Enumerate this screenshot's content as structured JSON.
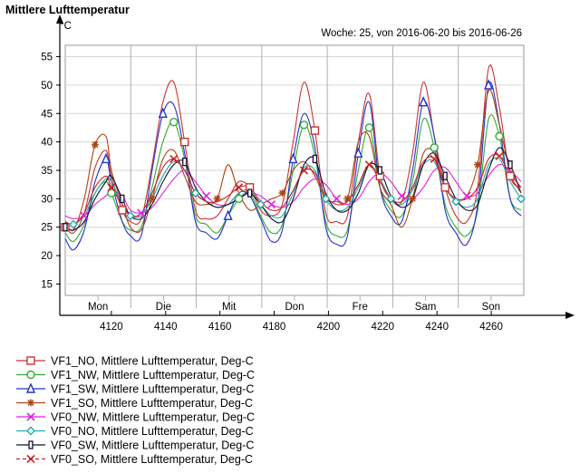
{
  "chart_data": {
    "type": "line",
    "title": "Mittlere Lufttemperatur",
    "ylabel": "°C",
    "subtitle": "Woche: 25, von 2016-06-20 bis 2016-06-26",
    "xlim": [
      4103,
      4272
    ],
    "ylim": [
      13,
      57
    ],
    "x_ticks": [
      4120,
      4140,
      4160,
      4180,
      4200,
      4220,
      4240,
      4260
    ],
    "y_ticks": [
      15,
      20,
      25,
      30,
      35,
      40,
      45,
      50,
      55
    ],
    "day_labels": [
      "Mon",
      "Die",
      "Mit",
      "Don",
      "Fre",
      "Sam",
      "Son"
    ],
    "grid": true,
    "legend_position": "bottom",
    "series": [
      {
        "name": "VF1_NO, Mittlere Lufttemperatur, Deg-C",
        "color": "#cc3333",
        "marker": "square",
        "x": [
          4103,
          4106,
          4110,
          4114,
          4118,
          4120,
          4124,
          4127,
          4131,
          4135,
          4139,
          4143,
          4147,
          4151,
          4155,
          4159,
          4163,
          4167,
          4171,
          4175,
          4179,
          4183,
          4187,
          4191,
          4195,
          4199,
          4203,
          4207,
          4211,
          4215,
          4219,
          4223,
          4227,
          4231,
          4235,
          4239,
          4243,
          4247,
          4251,
          4255,
          4259,
          4263,
          4267,
          4271
        ],
        "y": [
          25.0,
          24.0,
          27.5,
          35.5,
          38.5,
          34.0,
          28.0,
          26.0,
          26.5,
          36.0,
          47.0,
          50.5,
          40.0,
          28.0,
          26.5,
          27.0,
          30.0,
          33.0,
          32.0,
          28.0,
          27.0,
          29.0,
          40.0,
          50.5,
          42.0,
          27.5,
          26.0,
          27.0,
          40.0,
          48.5,
          34.0,
          30.0,
          29.5,
          38.0,
          50.5,
          41.0,
          32.0,
          27.0,
          26.0,
          32.0,
          53.0,
          46.0,
          34.0,
          32.0
        ]
      },
      {
        "name": "VF1_NW, Mittlere Lufttemperatur, Deg-C",
        "color": "#33aa33",
        "marker": "circle",
        "x": [
          4103,
          4106,
          4110,
          4114,
          4118,
          4120,
          4124,
          4127,
          4131,
          4135,
          4139,
          4143,
          4147,
          4151,
          4155,
          4159,
          4163,
          4167,
          4171,
          4175,
          4179,
          4183,
          4187,
          4191,
          4195,
          4199,
          4203,
          4207,
          4211,
          4215,
          4219,
          4223,
          4227,
          4231,
          4235,
          4239,
          4243,
          4247,
          4251,
          4255,
          4259,
          4263,
          4267,
          4271
        ],
        "y": [
          24.0,
          22.5,
          25.5,
          31.0,
          33.0,
          31.0,
          26.0,
          24.5,
          25.0,
          32.0,
          40.0,
          43.5,
          37.0,
          27.0,
          25.5,
          24.0,
          27.0,
          30.0,
          31.0,
          27.0,
          24.0,
          25.5,
          35.0,
          43.0,
          37.5,
          26.0,
          23.5,
          24.5,
          35.0,
          42.5,
          32.0,
          28.0,
          27.0,
          33.0,
          44.0,
          39.0,
          29.0,
          25.0,
          23.5,
          28.0,
          44.0,
          41.0,
          30.0,
          28.0
        ]
      },
      {
        "name": "VF1_SW, Mittlere Lufttemperatur, Deg-C",
        "color": "#2233cc",
        "marker": "triangle",
        "x": [
          4103,
          4106,
          4110,
          4114,
          4118,
          4120,
          4124,
          4127,
          4131,
          4135,
          4139,
          4143,
          4147,
          4151,
          4155,
          4159,
          4163,
          4167,
          4171,
          4175,
          4179,
          4183,
          4187,
          4191,
          4195,
          4199,
          4203,
          4207,
          4211,
          4215,
          4219,
          4223,
          4227,
          4231,
          4235,
          4239,
          4243,
          4247,
          4251,
          4255,
          4259,
          4263,
          4267,
          4271
        ],
        "y": [
          23.0,
          21.0,
          24.5,
          33.0,
          37.0,
          33.0,
          26.0,
          23.5,
          23.5,
          35.0,
          45.0,
          46.5,
          38.0,
          26.0,
          24.0,
          23.0,
          27.0,
          31.0,
          30.5,
          26.5,
          22.5,
          24.5,
          37.0,
          45.0,
          39.0,
          25.0,
          22.0,
          23.5,
          38.0,
          47.0,
          32.0,
          27.0,
          26.0,
          35.0,
          47.0,
          41.0,
          28.0,
          24.0,
          22.0,
          29.0,
          50.0,
          43.0,
          30.0,
          27.0
        ]
      },
      {
        "name": "VF1_SO, Mittlere Lufttemperatur, Deg-C",
        "color": "#aa4411",
        "marker": "star",
        "x": [
          4103,
          4106,
          4110,
          4114,
          4118,
          4120,
          4124,
          4127,
          4131,
          4135,
          4139,
          4143,
          4147,
          4151,
          4155,
          4159,
          4163,
          4167,
          4171,
          4175,
          4179,
          4183,
          4187,
          4191,
          4195,
          4199,
          4203,
          4207,
          4211,
          4215,
          4219,
          4223,
          4227,
          4231,
          4235,
          4239,
          4243,
          4247,
          4251,
          4255,
          4259,
          4263,
          4267,
          4271
        ],
        "y": [
          26.0,
          24.5,
          30.0,
          39.5,
          41.0,
          35.0,
          29.0,
          25.0,
          24.5,
          30.0,
          37.0,
          38.5,
          34.0,
          29.5,
          29.0,
          30.0,
          36.0,
          31.0,
          28.0,
          29.0,
          30.0,
          31.0,
          35.0,
          36.5,
          34.0,
          30.0,
          29.5,
          30.0,
          40.0,
          41.0,
          32.0,
          29.0,
          25.0,
          30.0,
          38.0,
          38.0,
          32.0,
          30.0,
          30.5,
          36.0,
          49.0,
          43.0,
          35.0,
          32.0
        ]
      },
      {
        "name": "VF0_NW, Mittlere Lufttemperatur, Deg-C",
        "color": "#dd22dd",
        "marker": "x",
        "x": [
          4103,
          4106,
          4110,
          4114,
          4118,
          4120,
          4124,
          4127,
          4131,
          4135,
          4139,
          4143,
          4147,
          4151,
          4155,
          4159,
          4163,
          4167,
          4171,
          4175,
          4179,
          4183,
          4187,
          4191,
          4195,
          4199,
          4203,
          4207,
          4211,
          4215,
          4219,
          4223,
          4227,
          4231,
          4235,
          4239,
          4243,
          4247,
          4251,
          4255,
          4259,
          4263,
          4267,
          4271
        ],
        "y": [
          27.0,
          26.5,
          27.0,
          29.0,
          30.5,
          31.5,
          30.5,
          28.0,
          27.5,
          28.5,
          31.0,
          33.5,
          35.0,
          33.0,
          30.5,
          29.0,
          29.0,
          30.0,
          31.0,
          30.5,
          29.0,
          28.5,
          29.5,
          32.0,
          33.5,
          32.5,
          30.0,
          29.0,
          30.0,
          33.0,
          34.5,
          33.0,
          30.5,
          30.0,
          32.0,
          35.0,
          35.5,
          33.0,
          30.5,
          31.0,
          34.0,
          36.0,
          35.0,
          33.0
        ]
      },
      {
        "name": "VF0_NO, Mittlere Lufttemperatur, Deg-C",
        "color": "#22aaaa",
        "marker": "diamond",
        "x": [
          4103,
          4106,
          4110,
          4114,
          4118,
          4120,
          4124,
          4127,
          4131,
          4135,
          4139,
          4143,
          4147,
          4151,
          4155,
          4159,
          4163,
          4167,
          4171,
          4175,
          4179,
          4183,
          4187,
          4191,
          4195,
          4199,
          4203,
          4207,
          4211,
          4215,
          4219,
          4223,
          4227,
          4231,
          4235,
          4239,
          4243,
          4247,
          4251,
          4255,
          4259,
          4263,
          4267,
          4271
        ],
        "y": [
          26.0,
          25.5,
          27.0,
          31.0,
          33.5,
          33.0,
          29.0,
          27.0,
          27.0,
          30.0,
          34.0,
          36.5,
          35.0,
          31.0,
          29.5,
          28.5,
          29.0,
          31.0,
          31.5,
          29.0,
          27.0,
          27.0,
          31.0,
          35.5,
          35.0,
          30.0,
          28.0,
          28.5,
          32.0,
          36.0,
          33.5,
          30.0,
          29.0,
          31.5,
          36.0,
          36.5,
          32.0,
          29.5,
          28.5,
          30.0,
          36.0,
          37.0,
          33.0,
          30.0
        ]
      },
      {
        "name": "VF0_SW, Mittlere Lufttemperatur, Deg-C",
        "color": "#111133",
        "marker": "rect",
        "x": [
          4103,
          4106,
          4110,
          4114,
          4118,
          4120,
          4124,
          4127,
          4131,
          4135,
          4139,
          4143,
          4147,
          4151,
          4155,
          4159,
          4163,
          4167,
          4171,
          4175,
          4179,
          4183,
          4187,
          4191,
          4195,
          4199,
          4203,
          4207,
          4211,
          4215,
          4219,
          4223,
          4227,
          4231,
          4235,
          4239,
          4243,
          4247,
          4251,
          4255,
          4259,
          4263,
          4267,
          4271
        ],
        "y": [
          25.0,
          24.5,
          26.0,
          30.0,
          33.0,
          34.0,
          30.0,
          27.0,
          26.5,
          29.0,
          33.0,
          36.0,
          36.5,
          32.0,
          29.5,
          28.5,
          29.0,
          30.0,
          31.0,
          29.0,
          26.5,
          26.0,
          30.0,
          36.0,
          37.0,
          31.0,
          28.0,
          28.0,
          31.0,
          36.0,
          35.0,
          30.5,
          28.5,
          30.0,
          36.0,
          38.0,
          34.0,
          30.0,
          28.0,
          29.0,
          35.0,
          39.0,
          36.0,
          31.0
        ]
      },
      {
        "name": "VF0_SO, Mittlere Lufttemperatur, Deg-C",
        "color": "#cc2222",
        "marker": "xbox",
        "x": [
          4103,
          4106,
          4110,
          4114,
          4118,
          4120,
          4124,
          4127,
          4131,
          4135,
          4139,
          4143,
          4147,
          4151,
          4155,
          4159,
          4163,
          4167,
          4171,
          4175,
          4179,
          4183,
          4187,
          4191,
          4195,
          4199,
          4203,
          4207,
          4211,
          4215,
          4219,
          4223,
          4227,
          4231,
          4235,
          4239,
          4243,
          4247,
          4251,
          4255,
          4259,
          4263,
          4267,
          4271
        ],
        "y": [
          26.0,
          25.5,
          27.5,
          32.0,
          34.0,
          32.0,
          29.0,
          27.0,
          27.5,
          31.0,
          35.5,
          37.0,
          35.0,
          31.0,
          29.5,
          29.5,
          30.5,
          32.0,
          32.0,
          29.5,
          28.0,
          28.5,
          31.5,
          35.0,
          34.5,
          30.5,
          29.0,
          29.5,
          32.5,
          36.0,
          33.0,
          30.0,
          29.5,
          32.0,
          36.5,
          37.0,
          32.0,
          30.0,
          30.0,
          32.0,
          37.0,
          37.5,
          34.0,
          31.0
        ]
      }
    ]
  }
}
